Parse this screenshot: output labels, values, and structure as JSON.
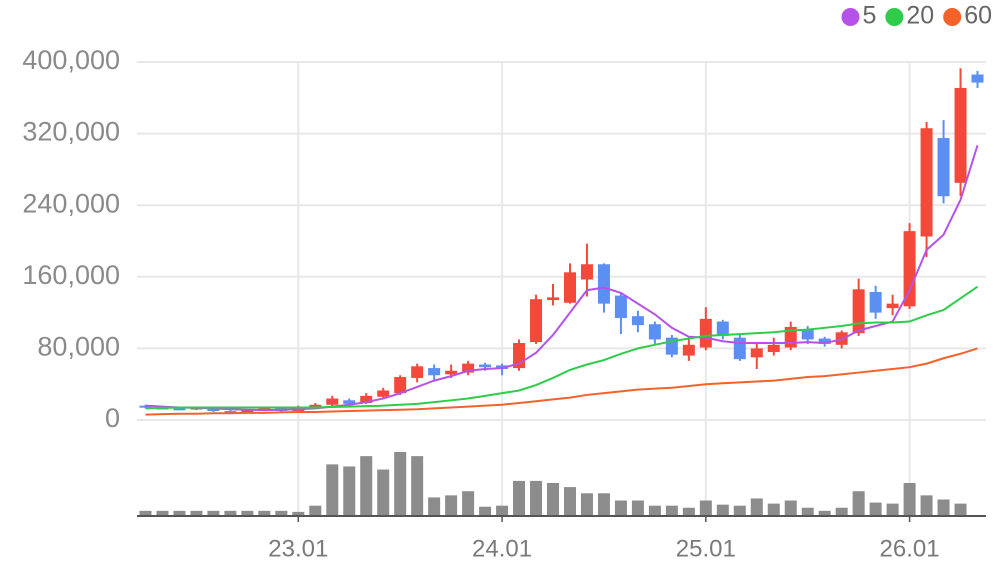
{
  "chart_data": {
    "type": "candlestick",
    "categories": [
      null,
      null,
      null,
      null,
      null,
      null,
      null,
      null,
      null,
      "23.01",
      null,
      null,
      null,
      null,
      null,
      null,
      null,
      null,
      null,
      null,
      null,
      "24.01",
      null,
      null,
      null,
      null,
      null,
      null,
      null,
      null,
      null,
      null,
      null,
      "25.01",
      null,
      null,
      null,
      null,
      null,
      null,
      null,
      null,
      null,
      null,
      null,
      "26.01",
      null,
      null,
      null,
      null
    ],
    "open": [
      16000,
      14000,
      13000,
      12000,
      14000,
      10000,
      9000,
      11000,
      14000,
      10000,
      15000,
      17000,
      22000,
      19000,
      26000,
      30000,
      47000,
      58000,
      51000,
      53000,
      62000,
      61000,
      58000,
      87000,
      134000,
      131000,
      157000,
      174000,
      139000,
      116000,
      107000,
      92000,
      72000,
      81000,
      110000,
      92000,
      70000,
      76000,
      81000,
      101000,
      91000,
      84000,
      97000,
      143000,
      125000,
      127000,
      205000,
      315000,
      265000,
      386000
    ],
    "high": [
      17000,
      15000,
      14000,
      15000,
      14500,
      11000,
      12000,
      15000,
      15000,
      16000,
      19000,
      27000,
      24000,
      30000,
      36000,
      50000,
      63000,
      62000,
      62000,
      66000,
      64000,
      63000,
      90000,
      140000,
      152000,
      175000,
      197000,
      175000,
      142000,
      122000,
      110000,
      95000,
      90000,
      126000,
      112000,
      96000,
      87000,
      92000,
      110000,
      105000,
      93000,
      100000,
      158000,
      150000,
      140000,
      220000,
      333000,
      335000,
      393000,
      390000
    ],
    "low": [
      13000,
      12000,
      11000,
      11000,
      9000,
      8000,
      8000,
      10000,
      9000,
      9000,
      14000,
      15000,
      17000,
      18000,
      25000,
      28000,
      42000,
      44000,
      47000,
      50000,
      55000,
      50000,
      55000,
      85000,
      128000,
      130000,
      138000,
      120000,
      96000,
      98000,
      85000,
      70000,
      66000,
      78000,
      90000,
      66000,
      57000,
      72000,
      78000,
      85000,
      82000,
      80000,
      94000,
      113000,
      117000,
      124000,
      182000,
      242000,
      250000,
      371000
    ],
    "close": [
      14000,
      13000,
      12000,
      14000,
      10000,
      9000,
      11000,
      14000,
      10000,
      15000,
      17000,
      24000,
      18000,
      27000,
      33000,
      48000,
      60000,
      50000,
      55000,
      63000,
      59000,
      57000,
      86000,
      135000,
      137000,
      165000,
      174000,
      130000,
      114000,
      106000,
      90000,
      73000,
      84000,
      113000,
      94000,
      68000,
      80000,
      84000,
      104000,
      90000,
      85000,
      98000,
      146000,
      120000,
      130000,
      211000,
      326000,
      250000,
      371000,
      377000
    ],
    "volume": [
      5,
      5,
      5,
      5,
      5,
      5,
      5,
      5,
      5,
      4,
      10,
      50,
      48,
      58,
      45,
      62,
      58,
      18,
      20,
      24,
      9,
      10,
      34,
      34,
      32,
      28,
      22,
      22,
      15,
      15,
      10,
      10,
      8,
      15,
      11,
      10,
      17,
      12,
      15,
      8,
      5,
      8,
      24,
      13,
      12,
      32,
      20,
      16,
      12,
      0
    ],
    "up_color": "#f2493b",
    "down_color": "#5b8ff2",
    "volume_color": "#8c8c8c",
    "series": [
      {
        "name": "5",
        "color": "#b553e8",
        "values": [
          16000,
          15000,
          14000,
          13500,
          13000,
          12000,
          11500,
          11000,
          11500,
          12000,
          13000,
          15000,
          17000,
          20000,
          24000,
          30000,
          37000,
          44000,
          49000,
          55000,
          57000,
          58000,
          63000,
          75000,
          95000,
          120000,
          145000,
          148000,
          142000,
          130000,
          118000,
          103000,
          93000,
          92000,
          88000,
          86000,
          86000,
          86000,
          86000,
          87000,
          86000,
          90000,
          100000,
          105000,
          110000,
          145000,
          190000,
          207000,
          246000,
          307000
        ]
      },
      {
        "name": "20",
        "color": "#2ecc4a",
        "values": [
          13000,
          13500,
          14000,
          14000,
          14000,
          14000,
          14000,
          14000,
          14000,
          14000,
          14000,
          14500,
          15000,
          15500,
          16000,
          17000,
          18000,
          20000,
          22000,
          24000,
          27000,
          30000,
          33000,
          39000,
          47000,
          56000,
          62000,
          67000,
          74000,
          80000,
          84000,
          88000,
          91000,
          94000,
          95000,
          96000,
          97000,
          98000,
          100000,
          101000,
          103000,
          105000,
          108000,
          109000,
          109000,
          110000,
          117000,
          123000,
          136000,
          149000
        ]
      },
      {
        "name": "60",
        "color": "#f4622a",
        "values": [
          6000,
          6500,
          7000,
          7000,
          7500,
          7500,
          8000,
          8000,
          8500,
          9000,
          9000,
          9500,
          10000,
          10500,
          11000,
          11500,
          12000,
          13000,
          14000,
          15000,
          16000,
          17000,
          19000,
          21000,
          23000,
          25000,
          28000,
          30000,
          32000,
          34000,
          35000,
          36000,
          38000,
          40000,
          41000,
          42000,
          43000,
          44000,
          46000,
          48000,
          49000,
          51000,
          53000,
          55000,
          57000,
          59000,
          63000,
          69000,
          74000,
          80000
        ]
      }
    ],
    "ylim": [
      0,
      400000
    ],
    "yticks": [
      0,
      {
        "value": 80000,
        "label": "80,000"
      },
      {
        "value": 160000,
        "label": "160,000"
      },
      {
        "value": 240000,
        "label": "240,000"
      },
      {
        "value": 320000,
        "label": "320,000"
      },
      {
        "value": 400000,
        "label": "400,000"
      }
    ],
    "grid": true
  }
}
